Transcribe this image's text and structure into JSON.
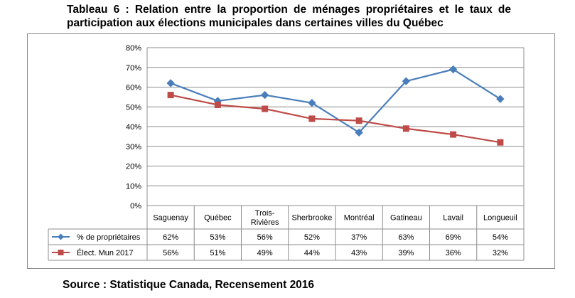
{
  "title": "Tableau 6 : Relation entre la proportion de ménages propriétaires et le taux de participation aux élections municipales dans certaines villes du Québec",
  "source": "Source : Statistique Canada, Recensement 2016",
  "chart_data": {
    "type": "line",
    "categories": [
      "Saguenay",
      "Québec",
      "Trois-Rivières",
      "Sherbrooke",
      "Montréal",
      "Gatineau",
      "Lavail",
      "Longueuil"
    ],
    "category_display": [
      [
        "Saguenay"
      ],
      [
        "Québec"
      ],
      [
        "Trois-",
        "Rivières"
      ],
      [
        "Sherbrooke"
      ],
      [
        "Montréal"
      ],
      [
        "Gatineau"
      ],
      [
        "Lavail"
      ],
      [
        "Longueuil"
      ]
    ],
    "ylim": [
      0,
      80
    ],
    "y_ticks": [
      "0%",
      "10%",
      "20%",
      "30%",
      "40%",
      "50%",
      "60%",
      "70%",
      "80%"
    ],
    "grid": true,
    "data_table": true,
    "series": [
      {
        "name": "% de propriétaires",
        "values": [
          62,
          53,
          56,
          52,
          37,
          63,
          69,
          54
        ],
        "labels": [
          "62%",
          "53%",
          "56%",
          "52%",
          "37%",
          "63%",
          "69%",
          "54%"
        ],
        "color": "#4a7ebb",
        "marker": "diamond"
      },
      {
        "name": "Élect. Mun 2017",
        "values": [
          56,
          51,
          49,
          44,
          43,
          39,
          36,
          32
        ],
        "labels": [
          "56%",
          "51%",
          "49%",
          "44%",
          "43%",
          "39%",
          "36%",
          "32%"
        ],
        "color": "#be4b48",
        "marker": "square"
      }
    ]
  }
}
